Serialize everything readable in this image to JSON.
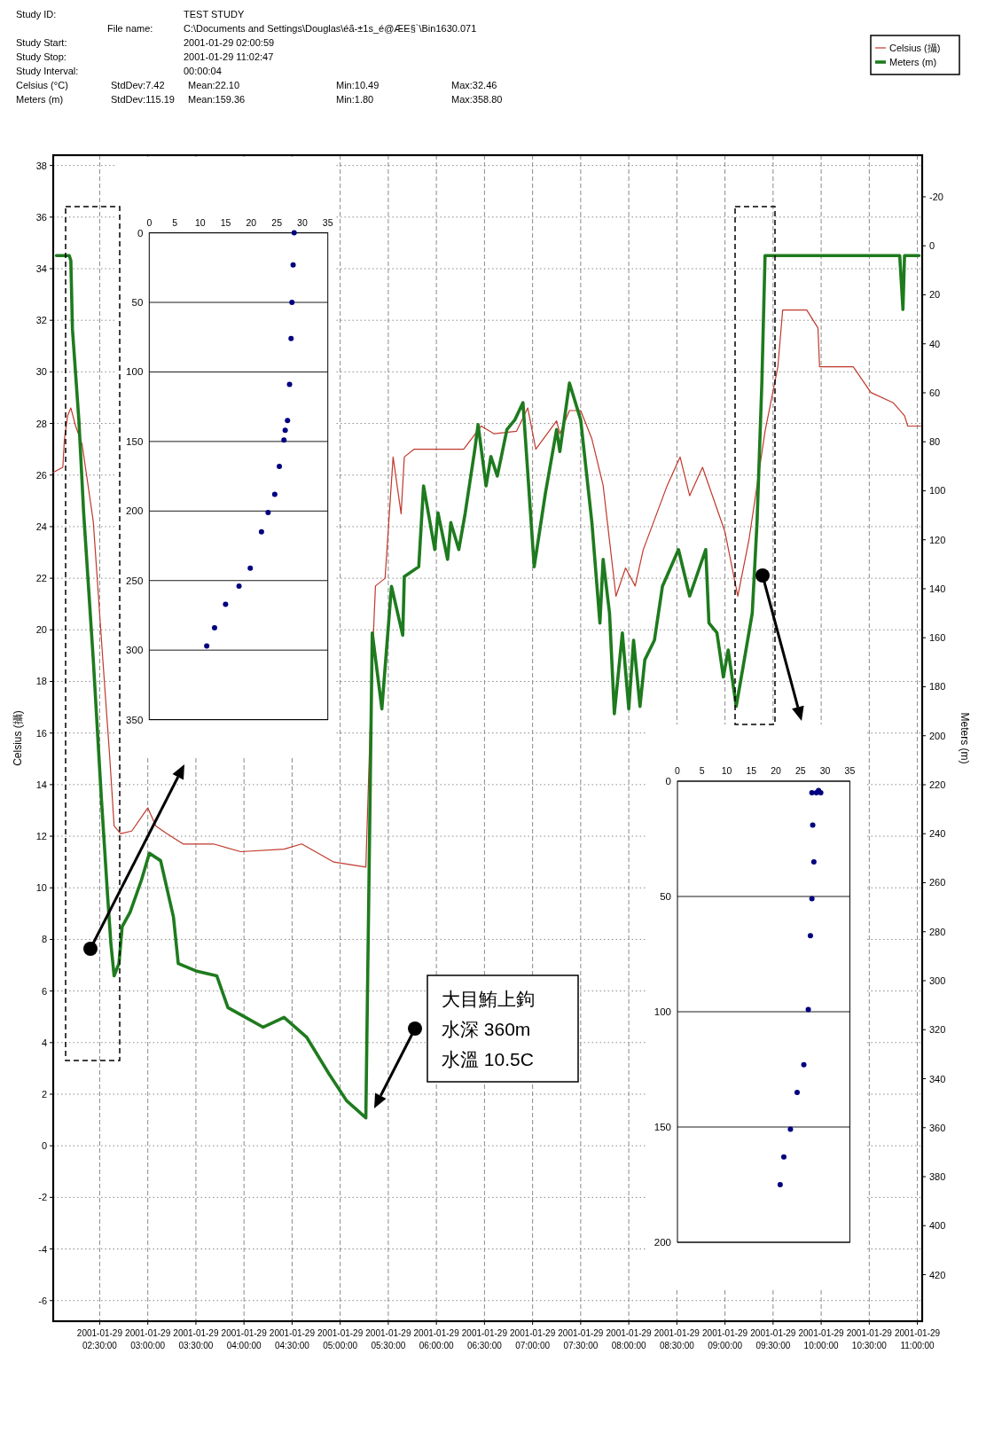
{
  "chart_data": [
    {
      "type": "line",
      "ylabel": "Celsius (攝)",
      "y2label": "Meters (m)",
      "xlim": [
        "2001-01-29T02:01",
        "2001-01-29T11:03"
      ],
      "xticks": [
        {
          "value": "2001-01-29T02:30",
          "label": "2001-01-29 02:30:00"
        },
        {
          "value": "2001-01-29T03:00",
          "label": "2001-01-29 03:00:00"
        },
        {
          "value": "2001-01-29T03:30",
          "label": "2001-01-29 03:30:00"
        },
        {
          "value": "2001-01-29T04:00",
          "label": "2001-01-29 04:00:00"
        },
        {
          "value": "2001-01-29T04:30",
          "label": "2001-01-29 04:30:00"
        },
        {
          "value": "2001-01-29T05:00",
          "label": "2001-01-29 05:00:00"
        },
        {
          "value": "2001-01-29T05:30",
          "label": "2001-01-29 05:30:00"
        },
        {
          "value": "2001-01-29T06:00",
          "label": "2001-01-29 06:00:00"
        },
        {
          "value": "2001-01-29T06:30",
          "label": "2001-01-29 06:30:00"
        },
        {
          "value": "2001-01-29T07:00",
          "label": "2001-01-29 07:00:00"
        },
        {
          "value": "2001-01-29T07:30",
          "label": "2001-01-29 07:30:00"
        },
        {
          "value": "2001-01-29T08:00",
          "label": "2001-01-29 08:00:00"
        },
        {
          "value": "2001-01-29T08:30",
          "label": "2001-01-29 08:30:00"
        },
        {
          "value": "2001-01-29T09:00",
          "label": "2001-01-29 09:00:00"
        },
        {
          "value": "2001-01-29T09:30",
          "label": "2001-01-29 09:30:00"
        },
        {
          "value": "2001-01-29T10:00",
          "label": "2001-01-29 10:00:00"
        },
        {
          "value": "2001-01-29T10:30",
          "label": "2001-01-29 10:30:00"
        },
        {
          "value": "2001-01-29T11:00",
          "label": "2001-01-29 11:00:00"
        }
      ],
      "ylim": [
        -6.8,
        38.4
      ],
      "yticks": [
        -6,
        -4,
        -2,
        0,
        2,
        4,
        6,
        8,
        10,
        12,
        14,
        16,
        18,
        20,
        22,
        24,
        26,
        28,
        30,
        32,
        34,
        36,
        38
      ],
      "y2lim": [
        439,
        -37
      ],
      "y2ticks": [
        -20,
        0,
        20,
        40,
        60,
        80,
        100,
        120,
        140,
        160,
        180,
        200,
        220,
        240,
        260,
        280,
        300,
        320,
        340,
        360,
        380,
        400,
        420
      ],
      "grid": true,
      "legend": "top right",
      "series": [
        {
          "name": "Celsius (攝)",
          "color": "#c0392b",
          "x": [
            "2001-01-29T02:01",
            "2001-01-29T02:07",
            "2001-01-29T02:08",
            "2001-01-29T02:10",
            "2001-01-29T02:12",
            "2001-01-29T02:15",
            "2001-01-29T02:19",
            "2001-01-29T02:26",
            "2001-01-29T02:32",
            "2001-01-29T02:36",
            "2001-01-29T02:39",
            "2001-01-29T02:43",
            "2001-01-29T02:50",
            "2001-01-29T03:00",
            "2001-01-29T03:05",
            "2001-01-29T03:12",
            "2001-01-29T03:22",
            "2001-01-29T03:41",
            "2001-01-29T03:58",
            "2001-01-29T04:25",
            "2001-01-29T04:36",
            "2001-01-29T04:56",
            "2001-01-29T05:16",
            "2001-01-29T05:20",
            "2001-01-29T05:22",
            "2001-01-29T05:28",
            "2001-01-29T05:33",
            "2001-01-29T05:38",
            "2001-01-29T05:40",
            "2001-01-29T05:46",
            "2001-01-29T06:17",
            "2001-01-29T06:28",
            "2001-01-29T06:36",
            "2001-01-29T06:50",
            "2001-01-29T06:57",
            "2001-01-29T07:02",
            "2001-01-29T07:15",
            "2001-01-29T07:17",
            "2001-01-29T07:23",
            "2001-01-29T07:30",
            "2001-01-29T07:37",
            "2001-01-29T07:44",
            "2001-01-29T07:52",
            "2001-01-29T07:58",
            "2001-01-29T08:04",
            "2001-01-29T08:09",
            "2001-01-29T08:24",
            "2001-01-29T08:32",
            "2001-01-29T08:38",
            "2001-01-29T08:46",
            "2001-01-29T09:00",
            "2001-01-29T09:08",
            "2001-01-29T09:15",
            "2001-01-29T09:25",
            "2001-01-29T09:33",
            "2001-01-29T09:36",
            "2001-01-29T09:51",
            "2001-01-29T09:58",
            "2001-01-29T09:59",
            "2001-01-29T10:20",
            "2001-01-29T10:31",
            "2001-01-29T10:45",
            "2001-01-29T10:52",
            "2001-01-29T10:54",
            "2001-01-29T11:02"
          ],
          "values": [
            26.1,
            26.3,
            27.4,
            28.3,
            28.6,
            27.9,
            27.2,
            24.2,
            18.8,
            15.3,
            12.4,
            12.1,
            12.2,
            13.1,
            12.4,
            12.1,
            11.7,
            11.7,
            11.4,
            11.5,
            11.7,
            11.0,
            10.8,
            18.8,
            21.7,
            22.0,
            26.7,
            24.5,
            26.7,
            27.0,
            27.0,
            27.9,
            27.6,
            27.7,
            28.6,
            27.0,
            28.1,
            27.6,
            28.5,
            28.5,
            27.4,
            25.6,
            21.3,
            22.4,
            21.7,
            23.1,
            25.6,
            26.7,
            25.2,
            26.3,
            23.8,
            21.3,
            23.5,
            27.7,
            30.2,
            32.4,
            32.4,
            31.7,
            30.2,
            30.2,
            29.2,
            28.8,
            28.3,
            27.9,
            27.9
          ]
        },
        {
          "name": "Meters (m)",
          "color": "#1e7b1e",
          "axis": "y2",
          "x": [
            "2001-01-29T02:03",
            "2001-01-29T02:11",
            "2001-01-29T02:12",
            "2001-01-29T02:13",
            "2001-01-29T02:17",
            "2001-01-29T02:20",
            "2001-01-29T02:26",
            "2001-01-29T02:31",
            "2001-01-29T02:35",
            "2001-01-29T02:37",
            "2001-01-29T02:39",
            "2001-01-29T02:42",
            "2001-01-29T02:44",
            "2001-01-29T02:49",
            "2001-01-29T02:56",
            "2001-01-29T03:01",
            "2001-01-29T03:08",
            "2001-01-29T03:16",
            "2001-01-29T03:19",
            "2001-01-29T03:30",
            "2001-01-29T03:43",
            "2001-01-29T03:50",
            "2001-01-29T04:01",
            "2001-01-29T04:12",
            "2001-01-29T04:25",
            "2001-01-29T04:39",
            "2001-01-29T04:53",
            "2001-01-29T05:04",
            "2001-01-29T05:16",
            "2001-01-29T05:20",
            "2001-01-29T05:26",
            "2001-01-29T05:32",
            "2001-01-29T05:39",
            "2001-01-29T05:40",
            "2001-01-29T05:49",
            "2001-01-29T05:52",
            "2001-01-29T05:59",
            "2001-01-29T06:01",
            "2001-01-29T06:07",
            "2001-01-29T06:09",
            "2001-01-29T06:14",
            "2001-01-29T06:18",
            "2001-01-29T06:24",
            "2001-01-29T06:26",
            "2001-01-29T06:31",
            "2001-01-29T06:34",
            "2001-01-29T06:38",
            "2001-01-29T06:44",
            "2001-01-29T06:49",
            "2001-01-29T06:54",
            "2001-01-29T07:01",
            "2001-01-29T07:08",
            "2001-01-29T07:15",
            "2001-01-29T07:17",
            "2001-01-29T07:23",
            "2001-01-29T07:30",
            "2001-01-29T07:37",
            "2001-01-29T07:42",
            "2001-01-29T07:44",
            "2001-01-29T07:48",
            "2001-01-29T07:51",
            "2001-01-29T07:56",
            "2001-01-29T08:00",
            "2001-01-29T08:03",
            "2001-01-29T08:07",
            "2001-01-29T08:10",
            "2001-01-29T08:16",
            "2001-01-29T08:21",
            "2001-01-29T08:31",
            "2001-01-29T08:38",
            "2001-01-29T08:48",
            "2001-01-29T08:50",
            "2001-01-29T08:55",
            "2001-01-29T08:59",
            "2001-01-29T09:02",
            "2001-01-29T09:07",
            "2001-01-29T09:11",
            "2001-01-29T09:17",
            "2001-01-29T09:20",
            "2001-01-29T09:23",
            "2001-01-29T09:25",
            "2001-01-29T10:49",
            "2001-01-29T10:51",
            "2001-01-29T10:52",
            "2001-01-29T11:01"
          ],
          "values": [
            4,
            4,
            6,
            34,
            71,
            109,
            169,
            225,
            266,
            285,
            298,
            293,
            278,
            272,
            259,
            248,
            251,
            274,
            293,
            296,
            298,
            311,
            315,
            319,
            315,
            323,
            338,
            349,
            356,
            158,
            189,
            139,
            159,
            135,
            131,
            98,
            124,
            109,
            128,
            113,
            124,
            109,
            83,
            73,
            98,
            86,
            94,
            75,
            71,
            64,
            131,
            101,
            75,
            84,
            56,
            71,
            113,
            154,
            128,
            150,
            191,
            158,
            189,
            161,
            188,
            169,
            161,
            139,
            124,
            143,
            124,
            154,
            158,
            176,
            165,
            188,
            173,
            150,
            113,
            56,
            4,
            4,
            26,
            4,
            4
          ]
        }
      ],
      "annotations": [
        "Study ID:",
        "TEST STUDY",
        "File name:",
        "C:\\Documents and Settings\\Douglas\\éã-±1s_é@ÆE§`\\Bin1630.071",
        "Study Start:",
        "2001-01-29 02:00:59",
        "Study Stop:",
        "2001-01-29 11:02:47",
        "Study Interval:",
        "00:00:04",
        "Celsius (°C)",
        "StdDev:7.42",
        "Mean:22.10",
        "Min:10.49",
        "Max:32.46",
        "Meters (m)",
        "StdDev:115.19",
        "Mean:159.36",
        "Min:1.80",
        "Max:358.80",
        "大目鮪上鉤",
        "水深 360m",
        "水溫 10.5C"
      ]
    },
    {
      "type": "scatter",
      "xlim": [
        0,
        35
      ],
      "xticks": [
        0,
        5,
        10,
        15,
        20,
        25,
        30,
        35
      ],
      "ylim": [
        350,
        0
      ],
      "yticks": [
        0,
        50,
        100,
        150,
        200,
        250,
        300,
        350
      ],
      "grid": "y",
      "marker": "circle",
      "series": [
        {
          "color": "#000080",
          "x": [
            11.27,
            12.8,
            14.96,
            17.6,
            19.8,
            22.0,
            23.3,
            24.6,
            25.5,
            26.4,
            26.65,
            27.1,
            27.5,
            27.8,
            27.97,
            28.2,
            28.4
          ],
          "values": [
            297,
            284,
            267,
            254,
            241,
            215,
            201,
            188,
            168,
            149,
            142,
            135,
            109,
            76,
            50,
            23,
            0
          ]
        }
      ]
    },
    {
      "type": "scatter",
      "xlim": [
        0,
        35
      ],
      "xticks": [
        0,
        5,
        10,
        15,
        20,
        25,
        30,
        35
      ],
      "ylim": [
        200,
        0
      ],
      "yticks": [
        0,
        50,
        100,
        150,
        200
      ],
      "grid": "y",
      "marker": "circle",
      "series": [
        {
          "color": "#000080",
          "x": [
            20.86,
            21.6,
            22.94,
            24.3,
            25.66,
            26.57,
            27.0,
            27.3,
            27.47,
            27.7,
            27.3,
            28.2,
            28.65,
            29.1
          ],
          "values": [
            175,
            163,
            151,
            135,
            123,
            99,
            67,
            51,
            19,
            35,
            5,
            5,
            4,
            5
          ]
        }
      ]
    }
  ]
}
